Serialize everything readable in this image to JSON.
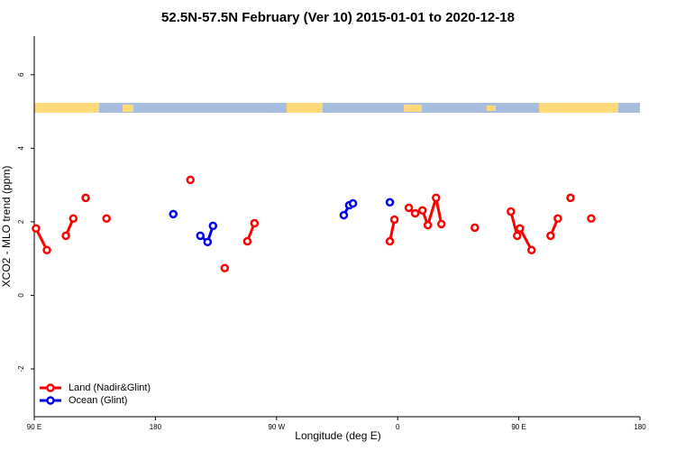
{
  "chart_data": {
    "type": "line",
    "title": "52.5N-57.5N February (Ver 10)   2015-01-01 to 2020-12-18",
    "x_label": "Longitude (deg E)",
    "y_label": "XCO2 - MLO trend (ppm)",
    "xlim": [
      90,
      540
    ],
    "xticks": [
      {
        "value": 90,
        "label": "90 E"
      },
      180,
      {
        "value": 270,
        "label": "90 W"
      },
      {
        "value": 360,
        "label": "0"
      },
      {
        "value": 450,
        "label": "90 E"
      },
      {
        "value": 540,
        "label": "180"
      }
    ],
    "ylim": [
      -3.3,
      7.05
    ],
    "yticks": [
      -2,
      0,
      2,
      4,
      6
    ],
    "legend": "bottom left",
    "series": [
      {
        "name": "Land (Nadir&Glint)",
        "color": "#ff0000",
        "x": [
          91.3,
          99.4,
          null,
          113.5,
          119,
          null,
          128.2,
          null,
          143.7,
          null,
          206,
          null,
          231.5,
          null,
          248.3,
          253.6,
          null,
          354.2,
          357.6,
          null,
          368.3,
          373,
          378.4,
          382.4,
          388.5,
          392.5,
          null,
          417.3,
          null,
          444.1,
          448.8,
          450.8,
          459.5,
          null,
          473.6,
          479,
          null,
          488.4,
          null,
          503.8
        ],
        "values": [
          1.82,
          1.23,
          null,
          1.62,
          2.09,
          null,
          2.65,
          null,
          2.09,
          null,
          3.14,
          null,
          0.74,
          null,
          1.47,
          1.96,
          null,
          1.47,
          2.06,
          null,
          2.38,
          2.23,
          2.31,
          1.91,
          2.65,
          1.94,
          null,
          1.84,
          null,
          2.28,
          1.62,
          1.82,
          1.23,
          null,
          1.62,
          2.09,
          null,
          2.65,
          null,
          2.09
        ]
      },
      {
        "name": "Ocean (Glint)",
        "color": "#0000ee",
        "x": [
          193.3,
          null,
          213.4,
          218.8,
          222.8,
          null,
          320,
          324,
          326.8,
          null,
          354.2
        ],
        "values": [
          2.21,
          null,
          1.62,
          1.45,
          1.89,
          null,
          2.18,
          2.45,
          2.5,
          null,
          2.53
        ]
      }
    ]
  }
}
